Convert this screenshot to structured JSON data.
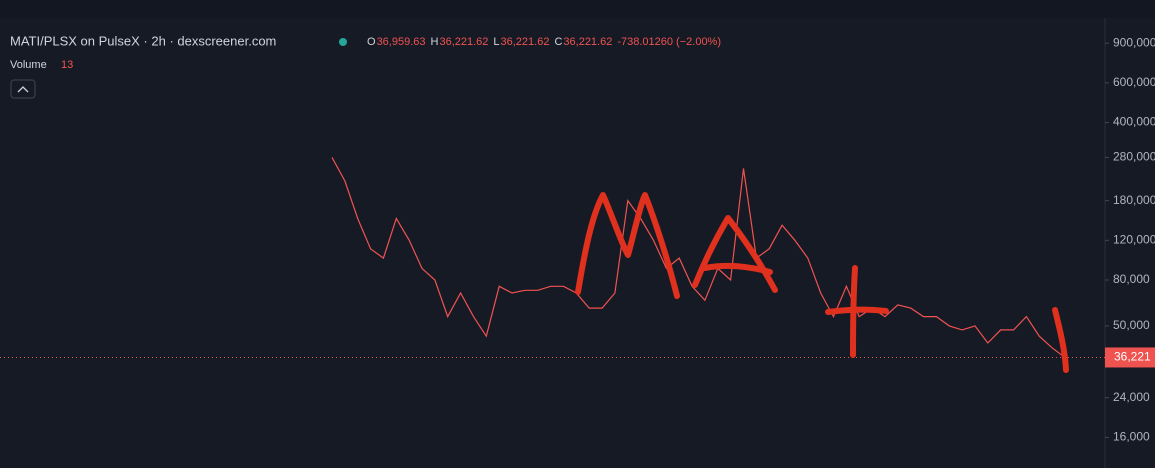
{
  "chart_data": {
    "type": "line",
    "title": "MATI/PLSX on PulseX · 2h · dexscreener.com",
    "ohlc": [
      {
        "label": "O",
        "value": "36,959.63"
      },
      {
        "label": "H",
        "value": "36,221.62"
      },
      {
        "label": "L",
        "value": "36,221.62"
      },
      {
        "label": "C",
        "value": "36,221.62"
      }
    ],
    "change": "-738.01260 (−2.00%)",
    "volume_label": "Volume",
    "volume_value": "13",
    "price_label": "36,221",
    "log_scale": true,
    "grid": false,
    "ylim": [
      11700,
      1400000
    ],
    "yticks": [
      {
        "value": 900000,
        "label": "900,000"
      },
      {
        "value": 600000,
        "label": "600,000"
      },
      {
        "value": 400000,
        "label": "400,000"
      },
      {
        "value": 280000,
        "label": "280,000"
      },
      {
        "value": 180000,
        "label": "180,000"
      },
      {
        "value": 120000,
        "label": "120,000"
      },
      {
        "value": 80000,
        "label": "80,000"
      },
      {
        "value": 50000,
        "label": "50,000"
      },
      {
        "value": 24000,
        "label": "24,000"
      },
      {
        "value": 16000,
        "label": "16,000"
      }
    ],
    "categories": [
      null,
      null,
      null,
      null,
      null,
      null,
      null,
      null,
      null,
      null,
      null,
      null,
      null,
      null,
      null,
      null,
      null,
      null,
      null,
      null,
      null,
      null,
      null,
      null,
      null,
      null,
      null,
      null,
      null,
      null,
      null,
      null,
      null,
      null,
      null,
      null,
      null,
      null,
      null,
      null,
      null,
      null,
      null,
      null,
      null,
      null,
      null,
      null,
      null,
      null,
      null,
      null,
      null,
      null,
      null,
      null,
      null,
      null
    ],
    "series": [
      {
        "color": "#ef5350",
        "values": [
          280000,
          220000,
          150000,
          110000,
          100000,
          150000,
          120000,
          90000,
          80000,
          55000,
          70000,
          55000,
          45000,
          75000,
          70000,
          72000,
          72000,
          75000,
          75000,
          70000,
          60000,
          60000,
          70000,
          180000,
          150000,
          120000,
          90000,
          100000,
          75000,
          65000,
          90000,
          80000,
          250000,
          100000,
          110000,
          140000,
          120000,
          100000,
          70000,
          55000,
          75000,
          55000,
          60000,
          55000,
          62000,
          60000,
          55000,
          55000,
          50000,
          48000,
          50000,
          42000,
          48000,
          48000,
          55000,
          45000,
          40000,
          36221.62
        ]
      }
    ]
  }
}
